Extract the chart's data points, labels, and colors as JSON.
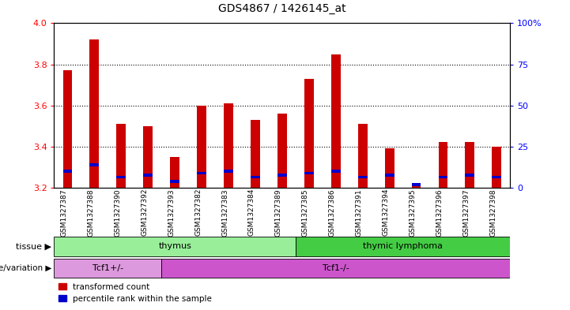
{
  "title": "GDS4867 / 1426145_at",
  "samples": [
    "GSM1327387",
    "GSM1327388",
    "GSM1327390",
    "GSM1327392",
    "GSM1327393",
    "GSM1327382",
    "GSM1327383",
    "GSM1327384",
    "GSM1327389",
    "GSM1327385",
    "GSM1327386",
    "GSM1327391",
    "GSM1327394",
    "GSM1327395",
    "GSM1327396",
    "GSM1327397",
    "GSM1327398"
  ],
  "transformed_count": [
    3.77,
    3.92,
    3.51,
    3.5,
    3.35,
    3.6,
    3.61,
    3.53,
    3.56,
    3.73,
    3.85,
    3.51,
    3.39,
    3.22,
    3.42,
    3.42,
    3.4
  ],
  "percentile_rank": [
    3.28,
    3.31,
    3.25,
    3.26,
    3.23,
    3.27,
    3.28,
    3.25,
    3.26,
    3.27,
    3.28,
    3.25,
    3.26,
    3.215,
    3.25,
    3.26,
    3.25
  ],
  "y_min": 3.2,
  "y_max": 4.0,
  "y_left_ticks": [
    3.2,
    3.4,
    3.6,
    3.8,
    4.0
  ],
  "y_right_ticks": [
    0,
    25,
    50,
    75,
    100
  ],
  "bar_color": "#cc0000",
  "blue_color": "#0000cc",
  "tissue_groups": [
    {
      "label": "thymus",
      "start": 0,
      "end": 9,
      "color": "#99ee99"
    },
    {
      "label": "thymic lymphoma",
      "start": 9,
      "end": 17,
      "color": "#44cc44"
    }
  ],
  "genotype_groups": [
    {
      "label": "Tcf1+/-",
      "start": 0,
      "end": 4,
      "color": "#dd99dd"
    },
    {
      "label": "Tcf1-/-",
      "start": 4,
      "end": 17,
      "color": "#cc55cc"
    }
  ],
  "legend_items": [
    {
      "label": "transformed count",
      "color": "#cc0000"
    },
    {
      "label": "percentile rank within the sample",
      "color": "#0000cc"
    }
  ],
  "tissue_row_label": "tissue",
  "genotype_row_label": "genotype/variation",
  "label_bg_color": "#e0e0e0"
}
